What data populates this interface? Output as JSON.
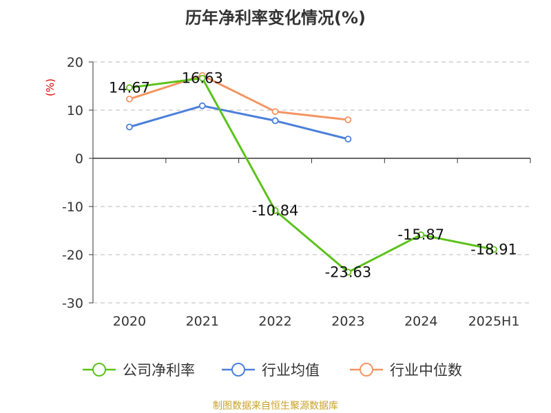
{
  "chart_data": {
    "type": "line",
    "title": "历年净利率变化情况(%)",
    "ylabel": "(%)",
    "xlabel": "",
    "categories": [
      "2020",
      "2021",
      "2022",
      "2023",
      "2024",
      "2025H1"
    ],
    "ylim": [
      -30,
      20
    ],
    "yticks": [
      20,
      10,
      0,
      -10,
      -20,
      -30
    ],
    "grid": true,
    "legend_position": "bottom",
    "series": [
      {
        "name": "公司净利率",
        "color": "#5bc219",
        "values": [
          14.67,
          16.63,
          -10.84,
          -23.63,
          -15.87,
          -18.91
        ],
        "labels": [
          "14.67",
          "16.63",
          "-10.84",
          "-23.63",
          "-15.87",
          "-18.91"
        ]
      },
      {
        "name": "行业均值",
        "color": "#4a7fdb",
        "values": [
          6.5,
          10.9,
          7.8,
          4.0,
          null,
          null
        ]
      },
      {
        "name": "行业中位数",
        "color": "#f59461",
        "values": [
          12.3,
          17.2,
          9.7,
          8.0,
          null,
          null
        ]
      }
    ],
    "source": "制图数据来自恒生聚源数据库"
  }
}
